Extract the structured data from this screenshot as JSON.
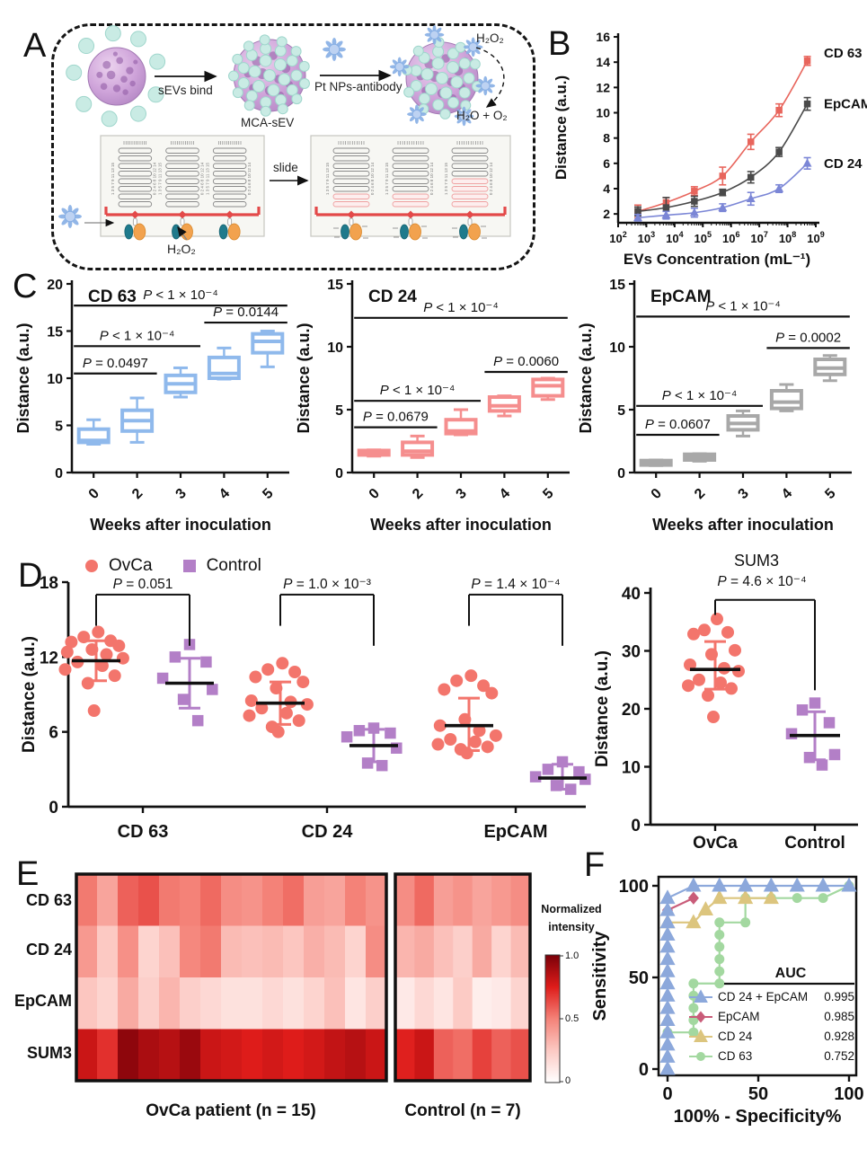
{
  "panel_labels": {
    "a": "A",
    "b": "B",
    "c": "C",
    "d": "D",
    "e": "E",
    "f": "F"
  },
  "panelA": {
    "sevs_bind": "sEVs bind",
    "mca_sev": "MCA-sEV",
    "pt_nps": "Pt NPs-antibody",
    "h2o2_top": "H₂O₂",
    "h2o_o2": "H₂O + O₂",
    "slide": "slide",
    "h2o2_bottom": "H₂O₂",
    "channel_numbers_left": "1 3 5 7 9 11 13 15",
    "channel_numbers_right": "0 2 4 6 8 10 12 14"
  },
  "legendD": {
    "ovca_label": "OvCa",
    "ovca_color": "#F3756C",
    "control_label": "Control",
    "control_color": "#B37FC7"
  },
  "chart_data": [
    {
      "id": "B",
      "type": "line",
      "xlabel": "EVs Concentration (mL⁻¹)",
      "ylabel": "Distance (a.u.)",
      "x_tick_exponents": [
        2,
        3,
        4,
        5,
        6,
        7,
        8,
        9
      ],
      "yticks": [
        2,
        4,
        6,
        8,
        10,
        12,
        14,
        16
      ],
      "ylim": [
        1.3,
        16.5
      ],
      "series": [
        {
          "name": "CD 63",
          "color": "#E8655C",
          "marker": "square",
          "x_log": [
            2.7,
            3.7,
            4.7,
            5.7,
            6.7,
            7.7,
            8.7
          ],
          "y": [
            2.2,
            2.9,
            3.8,
            5.0,
            7.7,
            10.2,
            14.1
          ],
          "err": [
            0.5,
            0.4,
            0.35,
            0.7,
            0.6,
            0.5,
            0.35
          ]
        },
        {
          "name": "EpCAM",
          "color": "#4A4A4A",
          "marker": "square",
          "x_log": [
            2.7,
            3.7,
            4.7,
            5.7,
            6.7,
            7.7,
            8.7
          ],
          "y": [
            2.2,
            2.5,
            3.0,
            3.7,
            4.9,
            6.9,
            10.7
          ],
          "err": [
            0.35,
            0.8,
            0.4,
            0.25,
            0.45,
            0.35,
            0.5
          ]
        },
        {
          "name": "CD 24",
          "color": "#7B86D6",
          "marker": "triangle",
          "x_log": [
            2.7,
            3.7,
            4.7,
            5.7,
            6.7,
            7.7,
            8.7
          ],
          "y": [
            1.7,
            1.9,
            2.1,
            2.5,
            3.2,
            4.0,
            6.0
          ],
          "err": [
            0.25,
            0.3,
            0.35,
            0.3,
            0.5,
            0.3,
            0.45
          ]
        }
      ]
    },
    {
      "id": "C1",
      "type": "box",
      "title": "CD 63",
      "color": "#8FB9EC",
      "xlabel": "Weeks after inoculation",
      "ylabel": "Distance (a.u.)",
      "categories": [
        "0",
        "2",
        "3",
        "4",
        "5"
      ],
      "ylim": [
        0,
        20
      ],
      "yticks": [
        0,
        5,
        10,
        15,
        20
      ],
      "boxes": [
        [
          3.0,
          3.2,
          3.4,
          4.6,
          5.6
        ],
        [
          3.2,
          4.4,
          5.5,
          6.6,
          7.9
        ],
        [
          8.0,
          8.5,
          9.4,
          10.3,
          11.1
        ],
        [
          9.9,
          10.0,
          10.5,
          12.2,
          13.2
        ],
        [
          11.2,
          12.7,
          13.9,
          14.7,
          15.0
        ]
      ],
      "sig": [
        {
          "from": 0,
          "to": 1,
          "y": 10.5,
          "label": "P = 0.0497"
        },
        {
          "from": 0,
          "to": 2,
          "y": 13.4,
          "label": "P < 1 × 10⁻⁴"
        },
        {
          "from": 0,
          "to": 4,
          "y": 17.7,
          "label": "P < 1 × 10⁻⁴"
        },
        {
          "from": 3,
          "to": 4,
          "y": 15.9,
          "label": "P = 0.0144"
        }
      ]
    },
    {
      "id": "C2",
      "type": "box",
      "title": "CD 24",
      "color": "#F58E8E",
      "xlabel": "Weeks after inoculation",
      "ylabel": "Distance (a.u.)",
      "categories": [
        "0",
        "2",
        "3",
        "4",
        "5"
      ],
      "ylim": [
        0,
        15
      ],
      "yticks": [
        0,
        5,
        10,
        15
      ],
      "boxes": [
        [
          1.3,
          1.4,
          1.55,
          1.75,
          1.8
        ],
        [
          1.2,
          1.4,
          1.7,
          2.4,
          2.9
        ],
        [
          3.0,
          3.1,
          3.3,
          4.2,
          5.0
        ],
        [
          4.5,
          4.9,
          5.3,
          6.0,
          6.1
        ],
        [
          5.8,
          6.1,
          6.9,
          7.4,
          7.5
        ]
      ],
      "sig": [
        {
          "from": 0,
          "to": 1,
          "y": 3.6,
          "label": "P = 0.0679"
        },
        {
          "from": 0,
          "to": 2,
          "y": 5.7,
          "label": "P < 1 × 10⁻⁴"
        },
        {
          "from": 0,
          "to": 4,
          "y": 12.3,
          "label": "P < 1 × 10⁻⁴"
        },
        {
          "from": 3,
          "to": 4,
          "y": 8.0,
          "label": "P = 0.0060"
        }
      ]
    },
    {
      "id": "C3",
      "type": "box",
      "title": "EpCAM",
      "color": "#A8A8A8",
      "xlabel": "Weeks after inoculation",
      "ylabel": "Distance (a.u.)",
      "categories": [
        "0",
        "2",
        "3",
        "4",
        "5"
      ],
      "ylim": [
        0,
        15
      ],
      "yticks": [
        0,
        5,
        10,
        15
      ],
      "boxes": [
        [
          0.55,
          0.6,
          0.8,
          0.95,
          1.0
        ],
        [
          0.9,
          1.0,
          1.2,
          1.45,
          1.5
        ],
        [
          2.9,
          3.4,
          3.9,
          4.5,
          4.9
        ],
        [
          4.9,
          5.1,
          5.6,
          6.5,
          7.0
        ],
        [
          7.3,
          7.8,
          8.3,
          9.0,
          9.3
        ]
      ],
      "sig": [
        {
          "from": 0,
          "to": 1,
          "y": 3.0,
          "label": "P = 0.0607"
        },
        {
          "from": 0,
          "to": 2,
          "y": 5.3,
          "label": "P < 1 × 10⁻⁴"
        },
        {
          "from": 0,
          "to": 4,
          "y": 12.4,
          "label": "P < 1 × 10⁻⁴"
        },
        {
          "from": 3,
          "to": 4,
          "y": 9.9,
          "label": "P = 0.0002"
        }
      ]
    },
    {
      "id": "D",
      "type": "scatter-groups",
      "ylabel": "Distance (a.u.)",
      "ylim": [
        0,
        18
      ],
      "yticks": [
        0,
        6,
        12,
        18
      ],
      "ovca_color": "#F3756C",
      "control_color": "#B37FC7",
      "groups": [
        {
          "label": "CD 63",
          "p": "P = 0.051",
          "ovca": [
            14.0,
            13.6,
            13.3,
            13.2,
            12.9,
            12.6,
            12.4,
            12.2,
            11.9,
            11.6,
            11.3,
            11.0,
            10.5,
            9.9,
            7.7
          ],
          "ovca_mean": 11.7,
          "ovca_sd": [
            10.1,
            13.3
          ],
          "control": [
            13.0,
            12.0,
            11.6,
            10.3,
            9.4,
            8.6,
            6.9
          ],
          "control_mean": 9.9,
          "control_sd": [
            7.9,
            11.9
          ]
        },
        {
          "label": "CD 24",
          "p": "P = 1.0 × 10⁻³",
          "ovca": [
            11.5,
            11.0,
            10.8,
            10.4,
            10.0,
            9.5,
            8.5,
            8.4,
            8.2,
            7.9,
            7.5,
            7.3,
            6.9,
            6.4,
            6.0
          ],
          "ovca_mean": 8.3,
          "ovca_sd": [
            6.6,
            10.0
          ],
          "control": [
            6.3,
            6.1,
            5.9,
            5.6,
            4.7,
            3.5,
            3.3
          ],
          "control_mean": 4.9,
          "control_sd": [
            3.6,
            6.2
          ]
        },
        {
          "label": "EpCAM",
          "p": "P = 1.4 × 10⁻⁴",
          "ovca": [
            10.5,
            10.1,
            9.7,
            9.4,
            9.1,
            7.0,
            6.5,
            6.1,
            5.7,
            5.4,
            5.2,
            5.0,
            4.8,
            4.6,
            4.3
          ],
          "ovca_mean": 6.5,
          "ovca_sd": [
            4.5,
            8.7
          ],
          "control": [
            3.6,
            3.0,
            2.8,
            2.4,
            2.2,
            1.7,
            1.4
          ],
          "control_mean": 2.3,
          "control_sd": [
            1.4,
            3.4
          ]
        }
      ]
    },
    {
      "id": "SUM3",
      "type": "scatter-groups",
      "title": "SUM3",
      "p": "P = 4.6 × 10⁻⁴",
      "ylabel": "Distance (a.u.)",
      "ylim": [
        0,
        40
      ],
      "yticks": [
        0,
        10,
        20,
        30,
        40
      ],
      "ovca_color": "#F3756C",
      "control_color": "#B37FC7",
      "categories": [
        "OvCa",
        "Control"
      ],
      "ovca": [
        35.5,
        33.6,
        33.2,
        32.9,
        30.1,
        29.4,
        27.6,
        27.0,
        26.5,
        25.0,
        24.5,
        24.0,
        23.5,
        22.3,
        18.6
      ],
      "ovca_mean": 26.8,
      "ovca_sd": [
        23.4,
        31.6
      ],
      "control": [
        21.0,
        19.8,
        17.6,
        15.7,
        12.1,
        11.6,
        10.3
      ],
      "control_mean": 15.4,
      "control_sd": [
        11.2,
        19.5
      ]
    },
    {
      "id": "E",
      "type": "heatmap",
      "rows": [
        "CD 63",
        "CD 24",
        "EpCAM",
        "SUM3"
      ],
      "group_labels": [
        "OvCa patient (n = 15)",
        "Control (n = 7)"
      ],
      "colorbar": {
        "title_line1": "Normalized",
        "title_line2": "intensity",
        "ticks": [
          "1.0",
          "0.5",
          "0"
        ]
      },
      "ovca": [
        [
          0.52,
          0.38,
          0.58,
          0.62,
          0.52,
          0.5,
          0.56,
          0.46,
          0.44,
          0.5,
          0.55,
          0.4,
          0.38,
          0.5,
          0.44
        ],
        [
          0.42,
          0.25,
          0.45,
          0.2,
          0.28,
          0.48,
          0.52,
          0.3,
          0.28,
          0.3,
          0.26,
          0.34,
          0.3,
          0.2,
          0.46
        ],
        [
          0.26,
          0.2,
          0.36,
          0.22,
          0.32,
          0.22,
          0.18,
          0.14,
          0.14,
          0.18,
          0.14,
          0.2,
          0.28,
          0.12,
          0.22
        ],
        [
          0.8,
          0.7,
          0.95,
          0.88,
          0.85,
          0.92,
          0.8,
          0.78,
          0.75,
          0.78,
          0.75,
          0.78,
          0.82,
          0.85,
          0.8
        ]
      ],
      "control": [
        [
          0.46,
          0.56,
          0.4,
          0.44,
          0.38,
          0.42,
          0.46
        ],
        [
          0.32,
          0.36,
          0.28,
          0.22,
          0.36,
          0.2,
          0.3
        ],
        [
          0.1,
          0.18,
          0.12,
          0.24,
          0.08,
          0.1,
          0.2
        ],
        [
          0.74,
          0.8,
          0.58,
          0.55,
          0.66,
          0.58,
          0.62
        ]
      ]
    },
    {
      "id": "F",
      "type": "roc",
      "xlabel": "100% - Specificity%",
      "ylabel": "Sensitivity",
      "xticks": [
        0,
        50,
        100
      ],
      "yticks": [
        0,
        50,
        100
      ],
      "legend_header": "AUC",
      "series": [
        {
          "name": "CD 24 + EpCAM",
          "auc": "0.995",
          "color": "#8CA8DB",
          "marker": "triangle",
          "pts": [
            [
              0,
              0
            ],
            [
              0,
              6.7
            ],
            [
              0,
              13.3
            ],
            [
              0,
              20
            ],
            [
              0,
              26.7
            ],
            [
              0,
              33.3
            ],
            [
              0,
              40
            ],
            [
              0,
              46.7
            ],
            [
              0,
              53.3
            ],
            [
              0,
              60
            ],
            [
              0,
              66.7
            ],
            [
              0,
              73.3
            ],
            [
              0,
              80
            ],
            [
              0,
              86.7
            ],
            [
              0,
              93.3
            ],
            [
              14.3,
              100
            ],
            [
              28.6,
              100
            ],
            [
              42.9,
              100
            ],
            [
              57.1,
              100
            ],
            [
              71.4,
              100
            ],
            [
              85.7,
              100
            ],
            [
              100,
              100
            ]
          ]
        },
        {
          "name": "EpCAM",
          "auc": "0.985",
          "color": "#C95C79",
          "marker": "diamond",
          "pts": [
            [
              0,
              86.7
            ],
            [
              14.3,
              93.3
            ]
          ]
        },
        {
          "name": "CD 24",
          "auc": "0.928",
          "color": "#DCC57E",
          "marker": "triangle",
          "pts": [
            [
              0,
              80
            ],
            [
              14.3,
              80
            ],
            [
              21,
              87
            ],
            [
              28.6,
              93.3
            ],
            [
              42.9,
              93.3
            ],
            [
              57.1,
              93.3
            ]
          ]
        },
        {
          "name": "CD 63",
          "auc": "0.752",
          "color": "#A3D8A0",
          "marker": "circle",
          "pts": [
            [
              0,
              20
            ],
            [
              14.3,
              20
            ],
            [
              14.3,
              26.7
            ],
            [
              14.3,
              33.3
            ],
            [
              14.3,
              40
            ],
            [
              14.3,
              46.7
            ],
            [
              28.6,
              46.7
            ],
            [
              28.6,
              53.3
            ],
            [
              28.6,
              60
            ],
            [
              28.6,
              66.7
            ],
            [
              28.6,
              73.3
            ],
            [
              28.6,
              80
            ],
            [
              42.9,
              80
            ],
            [
              42.9,
              93.3
            ],
            [
              57.1,
              93.3
            ],
            [
              71.4,
              93.3
            ],
            [
              85.7,
              93.3
            ],
            [
              100,
              100
            ]
          ]
        }
      ]
    }
  ]
}
